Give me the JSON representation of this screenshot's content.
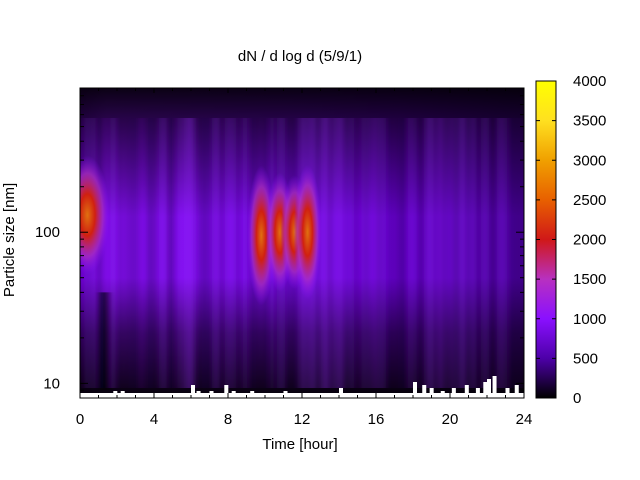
{
  "chart_data": {
    "type": "heatmap",
    "title": "dN / d log d (5/9/1)",
    "xlabel": "Time [hour]",
    "ylabel": "Particle size [nm]",
    "xlim": [
      0,
      24
    ],
    "ylim": [
      8,
      900
    ],
    "yscale": "log",
    "x_ticks": [
      0,
      4,
      8,
      12,
      16,
      20,
      24
    ],
    "x_tick_labels": [
      "0",
      "4",
      "8",
      "12",
      "16",
      "20",
      "24"
    ],
    "y_ticks": [
      10,
      100
    ],
    "y_tick_labels": [
      "10",
      "100"
    ],
    "colorbar": {
      "range": [
        0,
        4000
      ],
      "ticks": [
        0,
        500,
        1000,
        1500,
        2000,
        2500,
        3000,
        3500,
        4000
      ],
      "tick_labels": [
        "0",
        "500",
        "1000",
        "1500",
        "2000",
        "2500",
        "3000",
        "3500",
        "4000"
      ],
      "colormap": [
        "#000000",
        "#4d00a8",
        "#8a10ff",
        "#b830c0",
        "#d01818",
        "#e86000",
        "#f0a000",
        "#ffe020",
        "#ffff00"
      ]
    },
    "features": [
      {
        "time": 0.4,
        "size": 130,
        "value": 2300
      },
      {
        "time": 9.8,
        "size": 95,
        "value": 2700
      },
      {
        "time": 10.8,
        "size": 100,
        "value": 2300
      },
      {
        "time": 11.6,
        "size": 100,
        "value": 2200
      },
      {
        "time": 12.3,
        "size": 100,
        "value": 2600
      }
    ],
    "grid": false,
    "legend": "colorbar-right"
  }
}
